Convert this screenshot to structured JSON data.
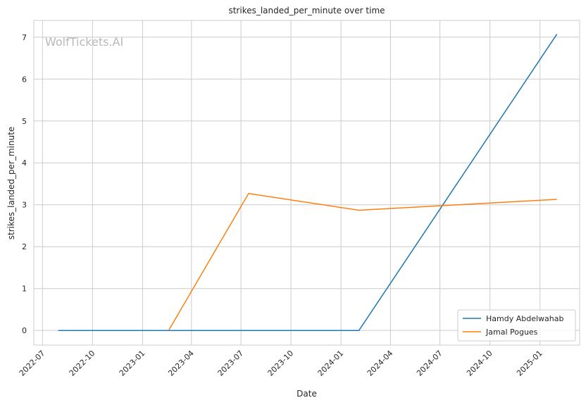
{
  "chart_data": {
    "type": "line",
    "title": "strikes_landed_per_minute over time",
    "xlabel": "Date",
    "ylabel": "strikes_landed_per_minute",
    "watermark": "WolfTickets.AI",
    "xlim": [
      "2022-06-15",
      "2025-03-15"
    ],
    "ylim": [
      -0.35,
      7.4
    ],
    "x_ticks": [
      {
        "date": "2022-07-01",
        "label": "2022-07"
      },
      {
        "date": "2022-10-01",
        "label": "2022-10"
      },
      {
        "date": "2023-01-01",
        "label": "2023-01"
      },
      {
        "date": "2023-04-01",
        "label": "2023-04"
      },
      {
        "date": "2023-07-01",
        "label": "2023-07"
      },
      {
        "date": "2023-10-01",
        "label": "2023-10"
      },
      {
        "date": "2024-01-01",
        "label": "2024-01"
      },
      {
        "date": "2024-04-01",
        "label": "2024-04"
      },
      {
        "date": "2024-07-01",
        "label": "2024-07"
      },
      {
        "date": "2024-10-01",
        "label": "2024-10"
      },
      {
        "date": "2025-01-01",
        "label": "2025-01"
      }
    ],
    "y_ticks": [
      0,
      1,
      2,
      3,
      4,
      5,
      6,
      7
    ],
    "grid": true,
    "legend_position": "bottom-right",
    "series": [
      {
        "name": "Hamdy Abdelwahab",
        "color": "#1f77b4",
        "points": [
          {
            "x": "2022-07-30",
            "y": 0.0
          },
          {
            "x": "2024-02-03",
            "y": 0.0
          },
          {
            "x": "2025-02-01",
            "y": 7.07
          }
        ]
      },
      {
        "name": "Jamal Pogues",
        "color": "#ff7f0e",
        "points": [
          {
            "x": "2023-02-18",
            "y": 0.0
          },
          {
            "x": "2023-07-15",
            "y": 3.27
          },
          {
            "x": "2024-02-03",
            "y": 2.87
          },
          {
            "x": "2025-02-01",
            "y": 3.13
          }
        ]
      }
    ]
  }
}
